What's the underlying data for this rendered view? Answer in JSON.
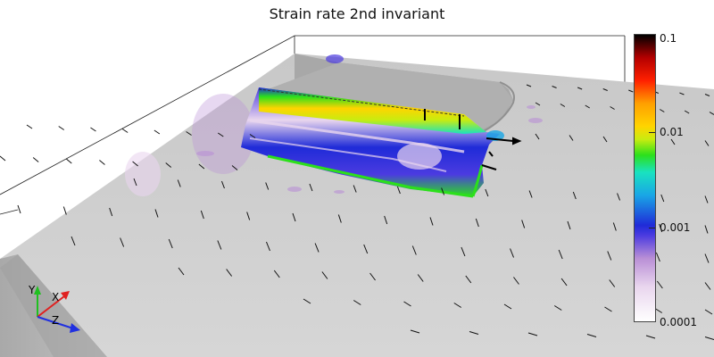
{
  "title": "Strain rate 2nd invariant",
  "colorbar": {
    "labels": [
      "0.1",
      "0.01",
      "0.001",
      "0.0001"
    ],
    "scale": "log"
  },
  "axes_triad": {
    "x": "X",
    "y": "Y",
    "z": "Z"
  },
  "colors": {
    "x_axis": "#e02020",
    "y_axis": "#20c020",
    "z_axis": "#2030e0",
    "surface": "#b4b4b4"
  }
}
